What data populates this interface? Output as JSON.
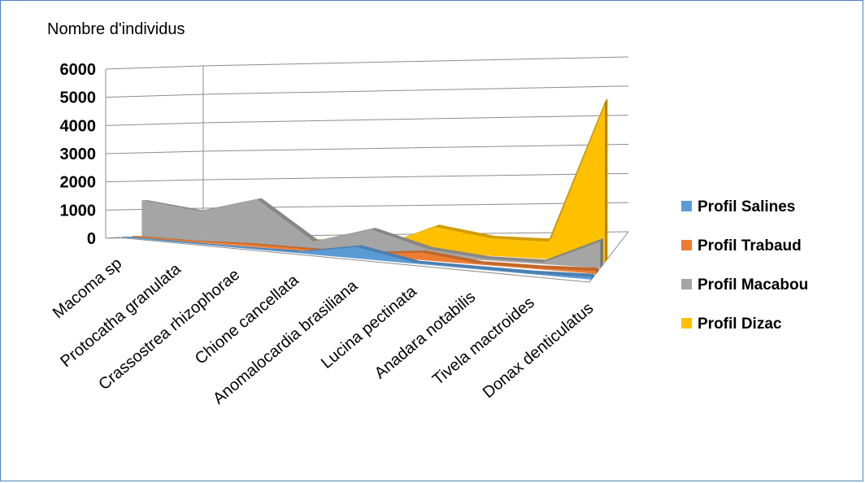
{
  "chart_data": {
    "type": "area",
    "title": "",
    "ylabel": "Nombre d'individus",
    "xlabel": "",
    "ylim": [
      0,
      6000
    ],
    "yticks": [
      "0",
      "1000",
      "2000",
      "3000",
      "4000",
      "5000",
      "6000"
    ],
    "categories": [
      "Macoma sp",
      "Protocatha granulata",
      "Crassostrea rhizophorae",
      "Chione cancellata",
      "Anomalocardia brasiliana",
      "Lucina pectinata",
      "Anadara notabilis",
      "Tivela mactroides",
      "Donax denticulatus"
    ],
    "series": [
      {
        "name": "Profil Salines",
        "color": "#5b9bd5",
        "values": [
          30,
          20,
          20,
          40,
          400,
          30,
          20,
          20,
          80
        ]
      },
      {
        "name": "Profil Trabaud",
        "color": "#ed7d31",
        "values": [
          50,
          30,
          80,
          60,
          60,
          260,
          30,
          30,
          90
        ]
      },
      {
        "name": "Profil Macabou",
        "color": "#a5a5a5",
        "values": [
          1300,
          1050,
          1600,
          250,
          800,
          250,
          50,
          50,
          900
        ]
      },
      {
        "name": "Profil Dizac",
        "color": "#ffc000",
        "values": [
          150,
          100,
          150,
          200,
          100,
          900,
          600,
          600,
          5500
        ]
      }
    ],
    "legend_position": "right",
    "grid": true
  }
}
